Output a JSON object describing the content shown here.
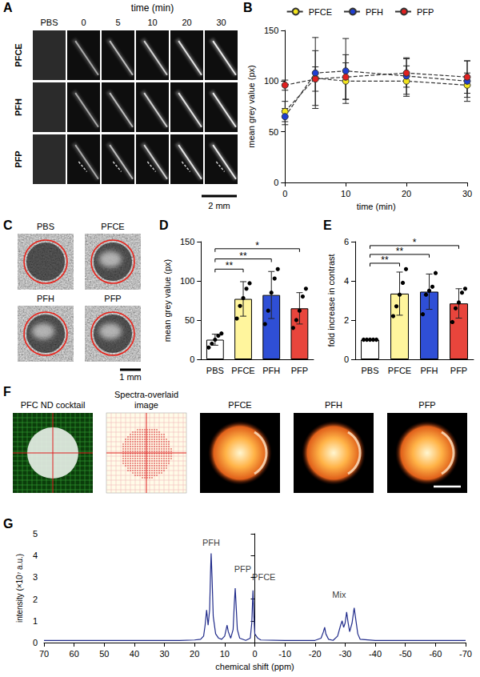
{
  "figure": {
    "ultrasound_time_course": {
      "panel": "A",
      "header": "time (min)",
      "columns": [
        "PBS",
        "0",
        "5",
        "10",
        "20",
        "30"
      ],
      "rows": [
        "PFCE",
        "PFH",
        "PFP"
      ],
      "scale_bar": "2 mm"
    },
    "ultrasound_phantom": {
      "panel": "C",
      "images": [
        "PBS",
        "PFCE",
        "PFH",
        "PFP"
      ],
      "scale_bar": "1 mm"
    },
    "mri": {
      "panel": "F",
      "images": [
        "PFC ND cocktail",
        "Spectra-overlaid image",
        "PFCE",
        "PFH",
        "PFP"
      ]
    }
  },
  "chart_data": [
    {
      "panel": "B",
      "type": "line",
      "x_label": "time (min)",
      "y_label": "mean grey value (px)",
      "x": [
        0,
        5,
        10,
        20,
        30
      ],
      "xlim": [
        0,
        30
      ],
      "xticks": [
        0,
        10,
        20,
        30
      ],
      "ylim": [
        0,
        150
      ],
      "yticks": [
        0,
        50,
        100,
        150
      ],
      "grid": false,
      "legend": "top",
      "marker": "circle",
      "line_style": "dashed",
      "series": [
        {
          "name": "PFCE",
          "color": "#f2e41c",
          "values": [
            70,
            103,
            100,
            100,
            96
          ],
          "errors": [
            10,
            27,
            18,
            15,
            12
          ]
        },
        {
          "name": "PFH",
          "color": "#1f3fd1",
          "values": [
            65,
            108,
            110,
            105,
            100
          ],
          "errors": [
            8,
            35,
            32,
            18,
            20
          ]
        },
        {
          "name": "PFP",
          "color": "#e02020",
          "values": [
            96,
            102,
            104,
            108,
            104
          ],
          "errors": [
            5,
            12,
            22,
            14,
            16
          ]
        }
      ]
    },
    {
      "panel": "D",
      "type": "bar",
      "y_label": "mean grey value (px)",
      "categories": [
        "PBS",
        "PFCE",
        "PFH",
        "PFP"
      ],
      "values": [
        25,
        77,
        82,
        65
      ],
      "errors": [
        7,
        22,
        30,
        20
      ],
      "points": [
        [
          15,
          20,
          25,
          30,
          33
        ],
        [
          52,
          68,
          78,
          90,
          97
        ],
        [
          45,
          62,
          85,
          103,
          115
        ],
        [
          40,
          50,
          62,
          80,
          90
        ]
      ],
      "colors": [
        "#ffffff",
        "#fff59d",
        "#2f4fd6",
        "#e8453c"
      ],
      "ylim": [
        0,
        150
      ],
      "yticks": [
        0,
        50,
        100,
        150
      ],
      "grid": false,
      "significance": [
        {
          "from": "PBS",
          "to": "PFCE",
          "label": "**",
          "y": 115
        },
        {
          "from": "PBS",
          "to": "PFH",
          "label": "**",
          "y": 128
        },
        {
          "from": "PBS",
          "to": "PFP",
          "label": "*",
          "y": 141
        }
      ]
    },
    {
      "panel": "E",
      "type": "bar",
      "y_label": "fold increase in contrast",
      "categories": [
        "PBS",
        "PFCE",
        "PFH",
        "PFP"
      ],
      "values": [
        1,
        3.35,
        3.45,
        2.85
      ],
      "errors": [
        0,
        1.1,
        0.9,
        0.75
      ],
      "points": [
        [
          1,
          1,
          1,
          1,
          1
        ],
        [
          2.2,
          2.7,
          3.3,
          3.9,
          4.6
        ],
        [
          2.3,
          3.3,
          3.5,
          3.7,
          4.4
        ],
        [
          1.9,
          2.6,
          2.9,
          3.4,
          3.6
        ]
      ],
      "colors": [
        "#ffffff",
        "#fff59d",
        "#2f4fd6",
        "#e8453c"
      ],
      "ylim": [
        0,
        6
      ],
      "yticks": [
        0,
        2,
        4,
        6
      ],
      "grid": false,
      "significance": [
        {
          "from": "PBS",
          "to": "PFCE",
          "label": "**",
          "y": 4.9
        },
        {
          "from": "PBS",
          "to": "PFH",
          "label": "**",
          "y": 5.35
        },
        {
          "from": "PBS",
          "to": "PFP",
          "label": "*",
          "y": 5.8
        }
      ]
    },
    {
      "panel": "G",
      "type": "line",
      "x_label": "chemical shift (ppm)",
      "y_label": "intensity (×10⁷ a.u.)",
      "color": "#1f2a8a",
      "xlim": [
        70,
        -70
      ],
      "xticks": [
        70,
        60,
        50,
        40,
        30,
        20,
        10,
        0,
        -10,
        -20,
        -30,
        -40,
        -50,
        -60,
        -70
      ],
      "ylim": [
        0,
        5
      ],
      "yticks": [
        0,
        1,
        2,
        3,
        4,
        5
      ],
      "grid": false,
      "x": [
        70,
        40,
        25,
        20,
        18,
        17,
        16.5,
        16,
        15.5,
        15,
        14.7,
        14.5,
        14.2,
        13.8,
        13,
        12,
        11,
        10,
        9.2,
        8.8,
        8,
        7.2,
        6.8,
        6.5,
        6.2,
        5.8,
        5,
        3,
        1.5,
        1,
        0.6,
        0.3,
        0,
        -1,
        -2,
        -10,
        -20,
        -22,
        -22.8,
        -23.2,
        -23.6,
        -24.5,
        -26,
        -27.5,
        -28.5,
        -29,
        -29.5,
        -30,
        -30.5,
        -31,
        -31.5,
        -32.3,
        -33,
        -33.5,
        -34.2,
        -35,
        -40,
        -70
      ],
      "values": [
        0.1,
        0.1,
        0.1,
        0.12,
        0.15,
        0.3,
        0.8,
        1.5,
        0.8,
        1.5,
        3.2,
        4.1,
        3.0,
        1.2,
        0.4,
        0.2,
        0.15,
        0.3,
        0.8,
        0.5,
        0.2,
        0.6,
        1.8,
        2.5,
        1.7,
        0.6,
        0.2,
        0.1,
        0.2,
        0.9,
        2.4,
        1.2,
        0.4,
        0.2,
        0.12,
        0.1,
        0.1,
        0.2,
        0.5,
        0.7,
        0.4,
        0.15,
        0.1,
        0.3,
        0.8,
        1.0,
        0.7,
        0.9,
        1.4,
        0.9,
        0.5,
        0.9,
        1.6,
        1.1,
        0.4,
        0.15,
        0.1,
        0.1
      ],
      "annotations": [
        {
          "text": "PFH",
          "x": 14.5,
          "y": 4.6
        },
        {
          "text": "PFP",
          "x": 4,
          "y": 3.4
        },
        {
          "text": "PFCE",
          "x": -3,
          "y": 3.0
        },
        {
          "text": "Mix",
          "x": -28,
          "y": 2.2
        }
      ]
    }
  ]
}
